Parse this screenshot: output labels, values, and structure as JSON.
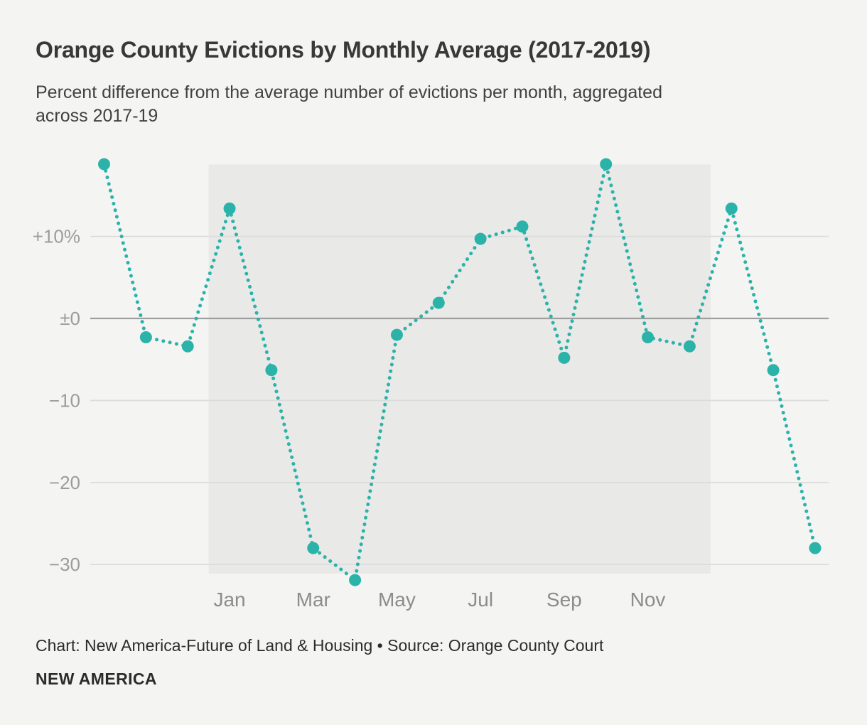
{
  "header": {
    "title": "Orange County Evictions by Monthly Average (2017-2019)",
    "subtitle_lines": [
      "Percent difference from the average number of evictions per month, aggregated",
      "across 2017-19"
    ]
  },
  "footer": {
    "source_line": "Chart: New America-Future of Land & Housing • Source: Orange County Court",
    "brand": "NEW AMERICA"
  },
  "colors": {
    "accent_teal": "#2bb3aa",
    "page_bg": "#f4f4f3",
    "highlight_band": "#e9e9e8",
    "gridline": "#dbdbdb",
    "zero_line": "#9e9e9e",
    "y_axis_label": "#9c9c9c",
    "x_axis_label": "#8c8c8c"
  },
  "chart_data": {
    "type": "line",
    "line_style": "dotted",
    "title": "Orange County Evictions by Monthly Average (2017-2019)",
    "ylabel": "Percent difference from the average number of evictions per month",
    "ylim": [
      -35,
      20
    ],
    "grid": "horizontal",
    "legend_position": "none",
    "monthly_values": {
      "Jan": 13.4,
      "Feb": -6.3,
      "Mar": -28.0,
      "Apr": -31.9,
      "May": -2.0,
      "Jun": 1.9,
      "Jul": 9.7,
      "Aug": 11.2,
      "Sep": -4.8,
      "Oct": 18.8,
      "Nov": -2.3,
      "Dec": -3.4
    },
    "display_sequence": [
      {
        "month": "Oct",
        "value": 18.8,
        "in_highlight": false
      },
      {
        "month": "Nov",
        "value": -2.3,
        "in_highlight": false
      },
      {
        "month": "Dec",
        "value": -3.4,
        "in_highlight": false
      },
      {
        "month": "Jan",
        "value": 13.4,
        "in_highlight": true
      },
      {
        "month": "Feb",
        "value": -6.3,
        "in_highlight": true
      },
      {
        "month": "Mar",
        "value": -28.0,
        "in_highlight": true
      },
      {
        "month": "Apr",
        "value": -31.9,
        "in_highlight": true
      },
      {
        "month": "May",
        "value": -2.0,
        "in_highlight": true
      },
      {
        "month": "Jun",
        "value": 1.9,
        "in_highlight": true
      },
      {
        "month": "Jul",
        "value": 9.7,
        "in_highlight": true
      },
      {
        "month": "Aug",
        "value": 11.2,
        "in_highlight": true
      },
      {
        "month": "Sep",
        "value": -4.8,
        "in_highlight": true
      },
      {
        "month": "Oct",
        "value": 18.8,
        "in_highlight": true
      },
      {
        "month": "Nov",
        "value": -2.3,
        "in_highlight": true
      },
      {
        "month": "Dec",
        "value": -3.4,
        "in_highlight": true
      },
      {
        "month": "Jan",
        "value": 13.4,
        "in_highlight": false
      },
      {
        "month": "Feb",
        "value": -6.3,
        "in_highlight": false
      },
      {
        "month": "Mar",
        "value": -28.0,
        "in_highlight": false
      }
    ],
    "y_ticks": [
      {
        "value": 10,
        "label": "+10%"
      },
      {
        "value": 0,
        "label": "±0"
      },
      {
        "value": -10,
        "label": "−10"
      },
      {
        "value": -20,
        "label": "−20"
      },
      {
        "value": -30,
        "label": "−30"
      }
    ],
    "x_ticks": [
      "Jan",
      "Mar",
      "May",
      "Jul",
      "Sep",
      "Nov"
    ],
    "highlight_band_months": "Jan–Dec"
  }
}
